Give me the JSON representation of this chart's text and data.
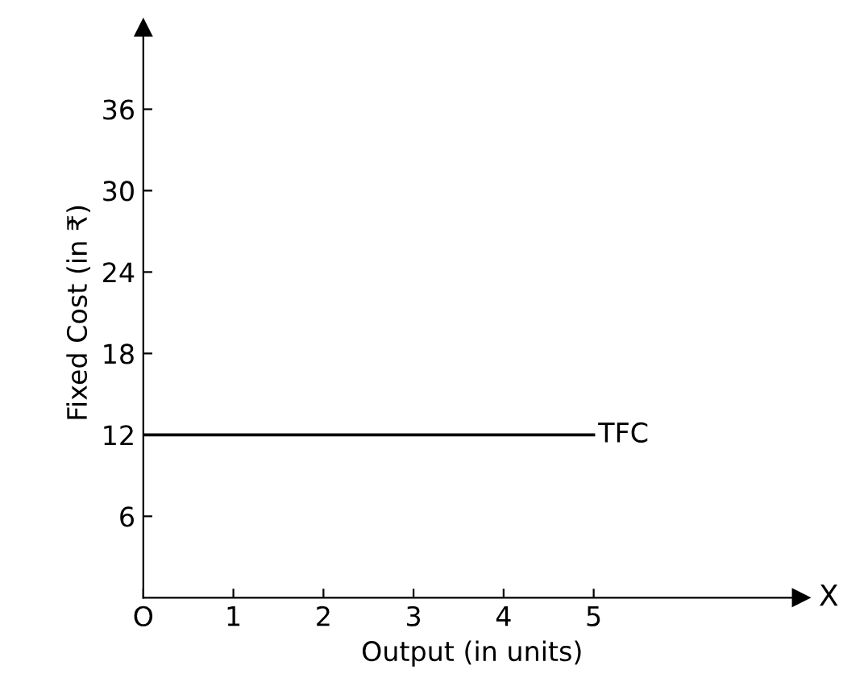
{
  "chart_data": {
    "type": "line",
    "xlabel": "Output (in units)",
    "ylabel": "Fixed Cost (in ₹)",
    "x": [
      0,
      5
    ],
    "series": [
      {
        "name": "TFC",
        "color": "#000000",
        "values": [
          12,
          12
        ]
      }
    ],
    "xlim": [
      0,
      7.3
    ],
    "ylim": [
      0,
      42
    ],
    "xticks": [
      {
        "value": 0,
        "label": "O"
      },
      1,
      2,
      3,
      4,
      5
    ],
    "yticks": [
      6,
      12,
      18,
      24,
      30,
      36
    ],
    "annotations": [
      {
        "text": "X",
        "x": 7.3,
        "y": 0
      }
    ],
    "grid": false,
    "legend": false,
    "marker": "none",
    "line_style": "solid"
  }
}
